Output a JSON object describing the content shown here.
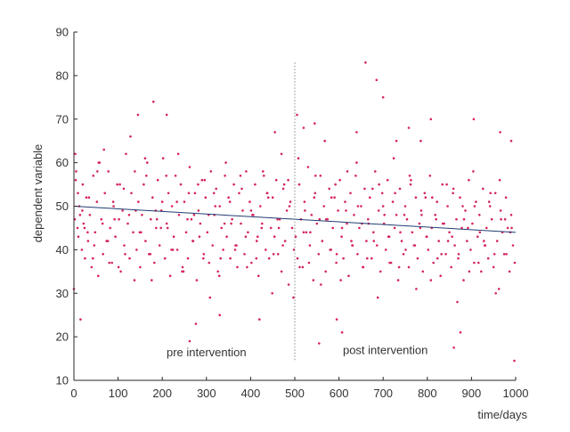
{
  "chart_data": {
    "type": "scatter",
    "title": "",
    "xlabel": "time/days",
    "ylabel": "dependent variable",
    "xlim": [
      0,
      1000
    ],
    "ylim": [
      10,
      90
    ],
    "xticks": [
      0,
      100,
      200,
      300,
      400,
      500,
      600,
      700,
      800,
      900,
      1000
    ],
    "yticks": [
      10,
      20,
      30,
      40,
      50,
      60,
      70,
      80,
      90
    ],
    "grid": false,
    "legend": "none",
    "point_color": "#d6245a",
    "trend_color": "#1f3b73",
    "intervention_line_color": "#888888",
    "intervention": {
      "x": 500,
      "y_range": [
        14.5,
        83
      ],
      "style": "dotted"
    },
    "annotations": [
      {
        "text": "pre intervention",
        "x": 300,
        "y": 15.5
      },
      {
        "text": "post intervention",
        "x": 705,
        "y": 16
      }
    ],
    "trend": {
      "x": [
        0,
        1000
      ],
      "y": [
        50,
        44
      ]
    },
    "points": {
      "x": [
        0,
        2,
        3,
        4,
        8,
        10,
        12,
        15,
        18,
        20,
        22,
        25,
        28,
        32,
        36,
        40,
        44,
        48,
        52,
        55,
        58,
        62,
        66,
        70,
        74,
        78,
        82,
        86,
        90,
        94,
        98,
        102,
        106,
        110,
        114,
        118,
        122,
        126,
        130,
        134,
        138,
        142,
        146,
        150,
        154,
        158,
        162,
        166,
        170,
        174,
        178,
        182,
        186,
        190,
        194,
        198,
        202,
        206,
        210,
        214,
        218,
        222,
        226,
        230,
        234,
        238,
        242,
        246,
        250,
        254,
        258,
        262,
        266,
        270,
        274,
        278,
        282,
        286,
        290,
        294,
        298,
        302,
        306,
        310,
        314,
        318,
        322,
        326,
        330,
        334,
        338,
        342,
        346,
        350,
        354,
        358,
        362,
        366,
        370,
        374,
        378,
        382,
        386,
        390,
        394,
        398,
        402,
        406,
        410,
        414,
        418,
        422,
        426,
        430,
        434,
        438,
        442,
        446,
        450,
        454,
        458,
        462,
        466,
        470,
        474,
        478,
        482,
        486,
        490,
        494,
        498,
        502,
        506,
        510,
        514,
        518,
        522,
        526,
        530,
        534,
        538,
        542,
        546,
        550,
        554,
        558,
        562,
        566,
        570,
        574,
        578,
        582,
        586,
        590,
        594,
        598,
        602,
        606,
        610,
        614,
        618,
        622,
        626,
        630,
        634,
        638,
        642,
        646,
        650,
        654,
        658,
        662,
        666,
        670,
        674,
        678,
        682,
        686,
        690,
        694,
        698,
        702,
        706,
        710,
        714,
        718,
        722,
        726,
        730,
        734,
        738,
        742,
        746,
        750,
        754,
        758,
        762,
        766,
        770,
        774,
        778,
        782,
        786,
        790,
        794,
        798,
        802,
        806,
        810,
        814,
        818,
        822,
        826,
        830,
        834,
        838,
        842,
        846,
        850,
        854,
        858,
        862,
        866,
        870,
        874,
        878,
        882,
        886,
        890,
        894,
        898,
        902,
        906,
        910,
        914,
        918,
        922,
        926,
        930,
        934,
        938,
        942,
        946,
        950,
        954,
        958,
        962,
        966,
        970,
        974,
        978,
        982,
        986,
        990,
        994,
        998,
        5,
        14,
        24,
        34,
        46,
        56,
        68,
        80,
        92,
        104,
        116,
        128,
        140,
        152,
        164,
        176,
        188,
        200,
        212,
        224,
        236,
        248,
        260,
        272,
        284,
        296,
        308,
        320,
        332,
        344,
        356,
        368,
        380,
        392,
        404,
        416,
        428,
        440,
        452,
        464,
        476,
        488,
        508,
        520,
        532,
        544,
        556,
        568,
        580,
        592,
        604,
        616,
        628,
        640,
        652,
        664,
        676,
        688,
        700,
        712,
        724,
        736,
        748,
        760,
        772,
        784,
        796,
        808,
        820,
        832,
        844,
        856,
        868,
        880,
        892,
        904,
        916,
        928,
        940,
        952,
        964,
        976,
        988,
        9,
        19,
        31,
        43,
        53,
        65,
        77,
        89,
        101,
        113,
        125,
        137,
        149,
        161,
        173,
        185,
        197,
        209,
        221,
        233,
        245,
        257,
        269,
        281,
        293,
        305,
        317,
        329,
        341,
        353,
        365,
        377,
        389,
        401,
        413,
        425,
        437,
        449,
        461,
        473,
        485,
        497,
        511,
        523,
        535,
        547,
        559,
        571,
        583,
        595,
        607,
        619,
        631,
        643,
        655,
        667,
        679,
        691,
        703,
        715,
        727,
        739,
        751,
        763,
        775,
        787,
        799,
        811,
        823,
        835,
        847,
        859,
        871,
        883,
        895,
        907,
        919,
        931,
        943,
        955,
        967,
        979,
        991,
        145,
        180,
        210,
        262,
        276,
        330,
        420,
        455,
        470,
        505,
        520,
        545,
        555,
        595,
        607,
        640,
        660,
        685,
        700,
        730,
        758,
        785,
        808,
        860,
        875,
        905,
        965,
        990,
        997
      ],
      "y": [
        31,
        47,
        62,
        56,
        45,
        43,
        50,
        24,
        40,
        55,
        46,
        38,
        52,
        42,
        48,
        36,
        57,
        44,
        51,
        34,
        60,
        47,
        39,
        53,
        42,
        58,
        45,
        37,
        50,
        43,
        55,
        47,
        35,
        49,
        41,
        62,
        46,
        38,
        53,
        44,
        58,
        40,
        51,
        36,
        48,
        55,
        42,
        60,
        39,
        47,
        52,
        37,
        45,
        56,
        41,
        49,
        61,
        38,
        46,
        53,
        34,
        50,
        43,
        57,
        40,
        48,
        55,
        36,
        51,
        44,
        38,
        59,
        47,
        42,
        53,
        33,
        49,
        46,
        56,
        39,
        52,
        44,
        37,
        58,
        41,
        48,
        54,
        35,
        50,
        45,
        40,
        57,
        43,
        52,
        38,
        47,
        55,
        41,
        36,
        53,
        46,
        49,
        39,
        58,
        44,
        51,
        37,
        48,
        55,
        42,
        34,
        50,
        46,
        57,
        40,
        53,
        38,
        45,
        52,
        43,
        56,
        39,
        47,
        35,
        54,
        42,
        49,
        32,
        51,
        45,
        40,
        43,
        38,
        55,
        47,
        36,
        51,
        44,
        59,
        41,
        48,
        33,
        53,
        46,
        39,
        57,
        42,
        50,
        35,
        47,
        54,
        40,
        45,
        52,
        37,
        49,
        56,
        43,
        38,
        51,
        46,
        34,
        53,
        41,
        48,
        57,
        39,
        45,
        50,
        36,
        54,
        42,
        47,
        52,
        38,
        44,
        58,
        41,
        49,
        35,
        53,
        46,
        40,
        56,
        43,
        37,
        51,
        45,
        48,
        33,
        54,
        42,
        39,
        50,
        47,
        36,
        55,
        44,
        41,
        52,
        38,
        46,
        49,
        35,
        53,
        43,
        40,
        57,
        45,
        37,
        48,
        51,
        42,
        34,
        55,
        46,
        39,
        50,
        44,
        36,
        53,
        41,
        47,
        38,
        52,
        45,
        33,
        49,
        42,
        56,
        40,
        46,
        37,
        51,
        43,
        48,
        35,
        54,
        41,
        45,
        38,
        50,
        47,
        36,
        53,
        42,
        31,
        49,
        44,
        39,
        52,
        45,
        35,
        48,
        41,
        37,
        58,
        48,
        45,
        52,
        41,
        60,
        63,
        37,
        47,
        55,
        39,
        66,
        49,
        44,
        57,
        33,
        47,
        51,
        45,
        40,
        62,
        35,
        53,
        48,
        43,
        56,
        29,
        50,
        38,
        60,
        46,
        41,
        54,
        36,
        48,
        43,
        58,
        52,
        39,
        45,
        55,
        50,
        61,
        44,
        37,
        52,
        47,
        65,
        40,
        55,
        33,
        49,
        42,
        60,
        46,
        38,
        54,
        29,
        50,
        43,
        61,
        36,
        48,
        57,
        41,
        45,
        52,
        33,
        47,
        39,
        55,
        43,
        28,
        50,
        45,
        58,
        37,
        42,
        51,
        39,
        56,
        47,
        44,
        53,
        49,
        44,
        38,
        58,
        46,
        42,
        51,
        36,
        54,
        48,
        33,
        44,
        61,
        39,
        49,
        45,
        57,
        40,
        51,
        35,
        47,
        42,
        55,
        38,
        48,
        53,
        34,
        46,
        51,
        40,
        57,
        43,
        49,
        38,
        45,
        53,
        30,
        47,
        41,
        56,
        29,
        36,
        49,
        44,
        57,
        32,
        47,
        52,
        39,
        45,
        58,
        41,
        50,
        36,
        46,
        42,
        55,
        48,
        37,
        53,
        44,
        40,
        56,
        31,
        48,
        43,
        52,
        38,
        46,
        42,
        54,
        39,
        47,
        35,
        50,
        44,
        41,
        53,
        30,
        47,
        39,
        45,
        71,
        74,
        71,
        19,
        23,
        25,
        24,
        67,
        62,
        71,
        68,
        69,
        18.5,
        24,
        21,
        67,
        83,
        79,
        75,
        65,
        68,
        65,
        70,
        17.5,
        21,
        70,
        67,
        65,
        14.5
      ]
    }
  }
}
